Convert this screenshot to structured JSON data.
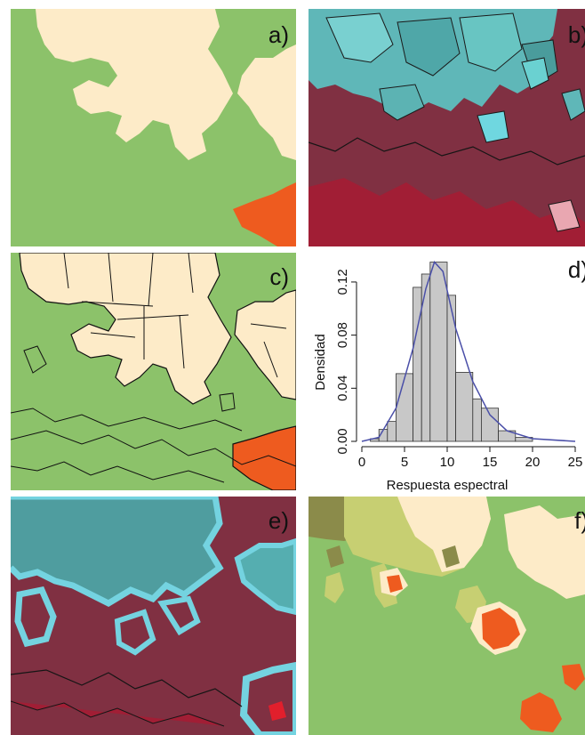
{
  "panels": {
    "a": {
      "label": "a)"
    },
    "b": {
      "label": "b)"
    },
    "c": {
      "label": "c)"
    },
    "d": {
      "label": "d)"
    },
    "e": {
      "label": "e)"
    },
    "f": {
      "label": "f)"
    }
  },
  "colors": {
    "green": "#8cc26a",
    "cream": "#fdebc8",
    "orange": "#ee5b1f",
    "satellite_red": "#8a2b3e",
    "cyan": "#6fd7e0",
    "olive": "#8b8b4a",
    "yellowgreen": "#c7cf72",
    "histogram_bar": "#c8c8c8",
    "density_line": "#4a4fa8"
  },
  "chart_data": {
    "type": "bar",
    "title": "",
    "xlabel": "Respuesta espectral",
    "ylabel": "Densidad",
    "xlim": [
      0,
      25
    ],
    "ylim": [
      0,
      0.13
    ],
    "x_ticks": [
      "0",
      "5",
      "10",
      "15",
      "20",
      "25"
    ],
    "y_ticks": [
      "0.00",
      "0.04",
      "0.08",
      "0.12"
    ],
    "bins": [
      {
        "x0": 1,
        "x1": 2,
        "value": 0.002
      },
      {
        "x0": 2,
        "x1": 3,
        "value": 0.009
      },
      {
        "x0": 3,
        "x1": 4,
        "value": 0.015
      },
      {
        "x0": 4,
        "x1": 6,
        "value": 0.051
      },
      {
        "x0": 6,
        "x1": 7,
        "value": 0.116
      },
      {
        "x0": 7,
        "x1": 8,
        "value": 0.126
      },
      {
        "x0": 8,
        "x1": 10,
        "value": 0.135
      },
      {
        "x0": 10,
        "x1": 11,
        "value": 0.11
      },
      {
        "x0": 11,
        "x1": 13,
        "value": 0.052
      },
      {
        "x0": 13,
        "x1": 14,
        "value": 0.032
      },
      {
        "x0": 14,
        "x1": 16,
        "value": 0.025
      },
      {
        "x0": 16,
        "x1": 18,
        "value": 0.008
      },
      {
        "x0": 18,
        "x1": 20,
        "value": 0.003
      }
    ],
    "density_curve": [
      {
        "x": 0,
        "y": 0.0
      },
      {
        "x": 2,
        "y": 0.003
      },
      {
        "x": 4,
        "y": 0.025
      },
      {
        "x": 6,
        "y": 0.07
      },
      {
        "x": 7.5,
        "y": 0.115
      },
      {
        "x": 8.5,
        "y": 0.135
      },
      {
        "x": 9.5,
        "y": 0.128
      },
      {
        "x": 11,
        "y": 0.085
      },
      {
        "x": 13,
        "y": 0.045
      },
      {
        "x": 15,
        "y": 0.02
      },
      {
        "x": 17,
        "y": 0.008
      },
      {
        "x": 20,
        "y": 0.002
      },
      {
        "x": 25,
        "y": 0.0
      }
    ]
  }
}
